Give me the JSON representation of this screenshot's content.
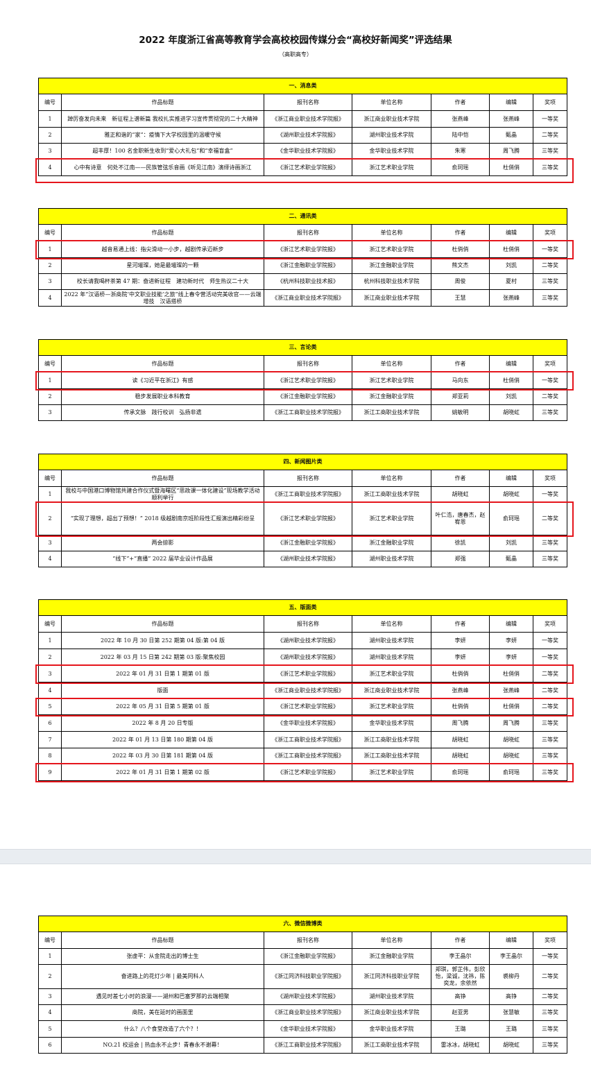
{
  "document": {
    "title": "2022 年度浙江省高等教育学会高校校园传媒分会“高校好新闻奖”评选结果",
    "subtitle": "（高职高专）",
    "columns": [
      "编号",
      "作品标题",
      "报刊名称",
      "单位名称",
      "作者",
      "编辑",
      "奖项"
    ],
    "highlight_color": "#e5141b",
    "section_color": "#ffff00"
  },
  "sections": [
    {
      "title": "一、消息类",
      "rows": [
        {
          "no": "1",
          "title": "踔厉奋发向未来　新征程上谱新篇 我校扎实推进学习宣传贯彻党的二十大精神",
          "paper": "《浙江商业职业技术学院报》",
          "unit": "浙江商业职业技术学院",
          "author": "张燕峰",
          "editor": "张燕峰",
          "award": "一等奖",
          "highlighted": false
        },
        {
          "no": "2",
          "title": "雅正和谐的“家”：疫情下大学校园里的温暖守候",
          "paper": "《湖州职业技术学院报》",
          "unit": "湖州职业技术学院",
          "author": "陆中恺",
          "editor": "甄晶",
          "award": "二等奖",
          "highlighted": false
        },
        {
          "no": "3",
          "title": "超丰厚！100 名金职新生收到“爱心大礼包”和“幸福盲盒”",
          "paper": "《金华职业技术学院报》",
          "unit": "金华职业技术学院",
          "author": "朱寒",
          "editor": "周飞腾",
          "award": "三等奖",
          "highlighted": false
        },
        {
          "no": "4",
          "title": "心中有诗意　何处不江南——民族管弦乐音画《听见江南》演绎诗画浙江",
          "paper": "《浙江艺术职业学院报》",
          "unit": "浙江艺术职业学院",
          "author": "俞珂瑶",
          "editor": "杜俏俏",
          "award": "三等奖",
          "highlighted": true
        }
      ]
    },
    {
      "title": "二、通讯类",
      "rows": [
        {
          "no": "1",
          "title": "越音易通上线：指尖滑动一小步，越剧传承迈新步",
          "paper": "《浙江艺术职业学院报》",
          "unit": "浙江艺术职业学院",
          "author": "杜俏俏",
          "editor": "杜俏俏",
          "award": "一等奖",
          "highlighted": true
        },
        {
          "no": "2",
          "title": "星河璀璨，她是最璀璨的一颗",
          "paper": "《浙江金融职业学院报》",
          "unit": "浙江金融职业学院",
          "author": "熊文杰",
          "editor": "刘凯",
          "award": "二等奖",
          "highlighted": false
        },
        {
          "no": "3",
          "title": "校长请我喝杯茶第 47 期：奋进新征程　建功新时代　师生热议二十大",
          "paper": "《杭州科技职业技术报》",
          "unit": "杭州科技职业技术学院",
          "author": "周俊",
          "editor": "夏村",
          "award": "三等奖",
          "highlighted": false
        },
        {
          "no": "4",
          "title": "2022 年“汉语桥—浙商院‘中文职业技能’之旅”线上春令营活动完美收官——云端增技　汉语搭桥",
          "paper": "《浙江商业职业技术学院报》",
          "unit": "浙江商业职业技术学院",
          "author": "王慧",
          "editor": "张燕峰",
          "award": "三等奖",
          "highlighted": false
        }
      ]
    },
    {
      "title": "三、言论类",
      "rows": [
        {
          "no": "1",
          "title": "读《习近平在浙江》有感",
          "paper": "《浙江艺术职业学院报》",
          "unit": "浙江艺术职业学院",
          "author": "马向东",
          "editor": "杜俏俏",
          "award": "一等奖",
          "highlighted": true
        },
        {
          "no": "2",
          "title": "稳步发展职业本科教育",
          "paper": "《浙江金融职业学院报》",
          "unit": "浙江金融职业学院",
          "author": "郑亚莉",
          "editor": "刘凯",
          "award": "二等奖",
          "highlighted": false
        },
        {
          "no": "3",
          "title": "传承文脉　践行校训　弘扬非遗",
          "paper": "《浙江工商职业技术学院报》",
          "unit": "浙江工商职业技术学院",
          "author": "姚敏明",
          "editor": "胡晓虹",
          "award": "三等奖",
          "highlighted": false
        }
      ]
    },
    {
      "title": "四、新闻图片类",
      "rows": [
        {
          "no": "1",
          "title": "我校与中国港口博物馆共建合作仪式暨海曙区“思政课一体化建设”现场教学活动顺利举行",
          "paper": "《浙江工商职业技术学院报》",
          "unit": "浙江工商职业技术学院",
          "author": "胡晓虹",
          "editor": "胡晓虹",
          "award": "一等奖",
          "highlighted": false
        },
        {
          "no": "2",
          "title": "“实现了理想，超出了预想！” 2018 级越剧南京班阶段性汇报演出精彩纷呈",
          "paper": "《浙江艺术职业学院报》",
          "unit": "浙江艺术职业学院",
          "author": "叶仁浩，唐春杰，赵宥恩",
          "editor": "俞珂瑶",
          "award": "二等奖",
          "highlighted": true
        },
        {
          "no": "3",
          "title": "两会掠影",
          "paper": "《浙江金融职业学院报》",
          "unit": "浙江金融职业学院",
          "author": "徐凯",
          "editor": "刘凯",
          "award": "三等奖",
          "highlighted": false
        },
        {
          "no": "4",
          "title": "“线下”+“直播” 2022 届毕业设计作品展",
          "paper": "《湖州职业技术学院报》",
          "unit": "湖州职业技术学院",
          "author": "郑强",
          "editor": "甄晶",
          "award": "三等奖",
          "highlighted": false
        }
      ]
    },
    {
      "title": "五、版面类",
      "rows": [
        {
          "no": "1",
          "title": "2022 年 10 月 30 日第 252 期第 04 版:第 04 版",
          "paper": "《湖州职业技术学院报》",
          "unit": "湖州职业技术学院",
          "author": "李妍",
          "editor": "李妍",
          "award": "一等奖",
          "highlighted": false
        },
        {
          "no": "2",
          "title": "2022 年 03 月 15 日第 242 期第 03 版:聚焦校园",
          "paper": "《湖州职业技术学院报》",
          "unit": "湖州职业技术学院",
          "author": "李妍",
          "editor": "李妍",
          "award": "一等奖",
          "highlighted": false
        },
        {
          "no": "3",
          "title": "2022 年 01 月 31 日第 1 期第 01 版",
          "paper": "《浙江艺术职业学院报》",
          "unit": "浙江艺术职业学院",
          "author": "杜俏俏",
          "editor": "杜俏俏",
          "award": "二等奖",
          "highlighted": true
        },
        {
          "no": "4",
          "title": "版面",
          "paper": "《浙江商业职业技术学院报》",
          "unit": "浙江商业职业技术学院",
          "author": "张燕峰",
          "editor": "张燕峰",
          "award": "二等奖",
          "highlighted": false
        },
        {
          "no": "5",
          "title": "2022 年 05 月 31 日第 5 期第 01 版",
          "paper": "《浙江艺术职业学院报》",
          "unit": "浙江艺术职业学院",
          "author": "杜俏俏",
          "editor": "杜俏俏",
          "award": "二等奖",
          "highlighted": true
        },
        {
          "no": "6",
          "title": "2022 年 8 月 20 日专版",
          "paper": "《金华职业技术学院报》",
          "unit": "金华职业技术学院",
          "author": "周飞腾",
          "editor": "周飞腾",
          "award": "三等奖",
          "highlighted": false
        },
        {
          "no": "7",
          "title": "2022 年 01 月 13 日第 180 期第 04 版",
          "paper": "《浙江工商职业技术学院报》",
          "unit": "浙江工商职业技术学院",
          "author": "胡晓虹",
          "editor": "胡晓虹",
          "award": "三等奖",
          "highlighted": false
        },
        {
          "no": "8",
          "title": "2022 年 03 月 30 日第 181 期第 04 版",
          "paper": "《浙江工商职业技术学院报》",
          "unit": "浙江工商职业技术学院",
          "author": "胡晓虹",
          "editor": "胡晓虹",
          "award": "三等奖",
          "highlighted": false
        },
        {
          "no": "9",
          "title": "2022 年 01 月 31 日第 1 期第 02 版",
          "paper": "《浙江艺术职业学院报》",
          "unit": "浙江艺术职业学院",
          "author": "俞珂瑶",
          "editor": "俞珂瑶",
          "award": "三等奖",
          "highlighted": true
        }
      ]
    },
    {
      "title": "六、微信微博类",
      "rows": [
        {
          "no": "1",
          "title": "张虚平：从金院走出的博士生",
          "paper": "《浙江金融职业学院报》",
          "unit": "浙江金融职业学院",
          "author": "李王晶尔",
          "editor": "李王晶尔",
          "award": "一等奖",
          "highlighted": false
        },
        {
          "no": "2",
          "title": "奋进路上的花灯少年 | 最美同科人",
          "paper": "《浙江同济科技职业学院报》",
          "unit": "浙江同济科技职业学院",
          "author": "郑琪，郭芷伟，彭欣怡，梁诚，沈祎，陈奕龙，余依然",
          "editor": "裘柳丹",
          "award": "二等奖",
          "highlighted": false
        },
        {
          "no": "3",
          "title": "遇见时差七小时的浪漫——湖州和巴塞罗那的云端相聚",
          "paper": "《湖州职业技术学院报》",
          "unit": "湖州职业技术学院",
          "author": "高铮",
          "editor": "高铮",
          "award": "二等奖",
          "highlighted": false
        },
        {
          "no": "4",
          "title": "商院，美在延时的画面里",
          "paper": "《浙江商业职业技术学院报》",
          "unit": "浙江商业职业技术学院",
          "author": "赵亚男",
          "editor": "张慧敏",
          "award": "三等奖",
          "highlighted": false
        },
        {
          "no": "5",
          "title": "什么？八个食堂改造了六个？！",
          "paper": "《金华职业技术学院报》",
          "unit": "金华职业技术学院",
          "author": "王璐",
          "editor": "王璐",
          "award": "三等奖",
          "highlighted": false
        },
        {
          "no": "6",
          "title": "NO.21 校运会 | 热血永不止步！青春永不谢幕！",
          "paper": "《浙江工商职业技术学院报》",
          "unit": "浙江工商职业技术学院",
          "author": "雷冰冰，胡晓虹",
          "editor": "胡晓虹",
          "award": "三等奖",
          "highlighted": false
        }
      ]
    }
  ]
}
